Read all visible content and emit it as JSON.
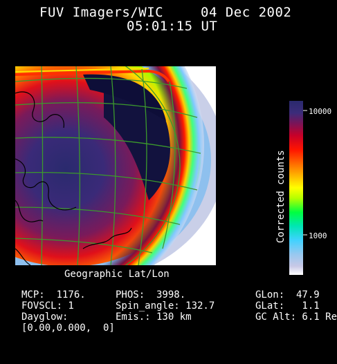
{
  "header": {
    "instrument": "FUV Imagers/WIC",
    "date": "04 Dec 2002",
    "time": "05:01:15 UT"
  },
  "map": {
    "caption": "Geographic Lat/Lon"
  },
  "colorbar": {
    "label": "Corrected counts",
    "tick_high": "10000",
    "tick_low": "1000",
    "colors": [
      "#ffffff",
      "#c8c8e6",
      "#96c8f0",
      "#50d2ff",
      "#00e6c8",
      "#00ff50",
      "#b4ff00",
      "#ffff00",
      "#ffc800",
      "#ff7800",
      "#ff1e00",
      "#e6001e",
      "#a00046",
      "#5a1e6e",
      "#32327d",
      "#1e1e5a"
    ]
  },
  "readouts": {
    "mcp": "MCP:  1176.",
    "fovscl": "FOVSCL: 1",
    "dayglow": "Dayglow:",
    "dayglow_vals": "[0.00,0.000,  0]",
    "phos": "PHOS:  3998.",
    "spin": "Spin_angle: 132.7",
    "emis": "Emis.: 130 km",
    "glon": "GLon:  47.9",
    "glat": "GLat:   1.1",
    "gcalt": "GC Alt: 6.1 Re"
  }
}
